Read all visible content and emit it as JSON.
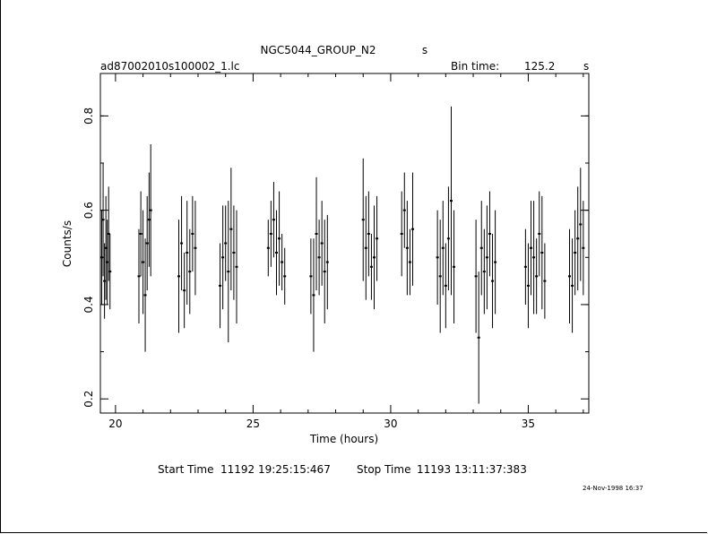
{
  "header": {
    "title": "NGC5044_GROUP_N2",
    "title_suffix": "s",
    "file_name": "ad87002010s100002_1.lc",
    "bin_label": "Bin time:",
    "bin_value": "125.2",
    "bin_unit": "s"
  },
  "footer": {
    "start_label": "Start Time",
    "start_value": "11192 19:25:15:467",
    "stop_label": "Stop Time",
    "stop_value": "11193 13:11:37:383",
    "timestamp": "24-Nov-1998 16:37"
  },
  "chart_data": {
    "type": "scatter",
    "xlabel": "Time (hours)",
    "ylabel": "Counts/s",
    "xlim": [
      19.45,
      37.2
    ],
    "ylim": [
      0.17,
      0.89
    ],
    "x_ticks": [
      20,
      25,
      30,
      35
    ],
    "y_ticks": [
      0.2,
      0.4,
      0.6,
      0.8
    ],
    "x_tick_labels": [
      "20",
      "25",
      "30",
      "35"
    ],
    "y_tick_labels": [
      "0.2",
      "0.4",
      "0.6",
      "0.8"
    ],
    "grid": false,
    "colors": {
      "line": "#000000"
    },
    "segments": [
      {
        "x": [
          19.5,
          19.55,
          19.6,
          19.65,
          19.7,
          19.75,
          19.8
        ],
        "y": [
          0.5,
          0.58,
          0.45,
          0.52,
          0.49,
          0.55,
          0.47
        ],
        "err": [
          0.1,
          0.12,
          0.08,
          0.11,
          0.09,
          0.1,
          0.08
        ]
      },
      {
        "x": [
          20.85,
          20.92,
          21.0,
          21.08,
          21.15,
          21.22,
          21.28
        ],
        "y": [
          0.46,
          0.55,
          0.49,
          0.42,
          0.53,
          0.58,
          0.6
        ],
        "err": [
          0.1,
          0.09,
          0.11,
          0.12,
          0.1,
          0.1,
          0.14
        ]
      },
      {
        "x": [
          22.3,
          22.4,
          22.5,
          22.6,
          22.7,
          22.8,
          22.9
        ],
        "y": [
          0.46,
          0.53,
          0.43,
          0.51,
          0.47,
          0.55,
          0.52
        ],
        "err": [
          0.12,
          0.1,
          0.08,
          0.11,
          0.09,
          0.08,
          0.1
        ]
      },
      {
        "x": [
          23.8,
          23.9,
          24.0,
          24.1,
          24.2,
          24.3,
          24.4
        ],
        "y": [
          0.44,
          0.5,
          0.53,
          0.47,
          0.56,
          0.51,
          0.48
        ],
        "err": [
          0.09,
          0.11,
          0.08,
          0.15,
          0.13,
          0.1,
          0.12
        ]
      },
      {
        "x": [
          25.55,
          25.65,
          25.75,
          25.85,
          25.95,
          26.05,
          26.15
        ],
        "y": [
          0.52,
          0.55,
          0.58,
          0.51,
          0.54,
          0.49,
          0.46
        ],
        "err": [
          0.06,
          0.07,
          0.08,
          0.09,
          0.1,
          0.06,
          0.06
        ]
      },
      {
        "x": [
          27.1,
          27.2,
          27.3,
          27.4,
          27.5,
          27.6,
          27.7
        ],
        "y": [
          0.46,
          0.42,
          0.55,
          0.5,
          0.53,
          0.47,
          0.49
        ],
        "err": [
          0.08,
          0.12,
          0.12,
          0.08,
          0.09,
          0.11,
          0.1
        ]
      },
      {
        "x": [
          29.0,
          29.1,
          29.2,
          29.3,
          29.4,
          29.5
        ],
        "y": [
          0.58,
          0.52,
          0.55,
          0.48,
          0.5,
          0.54
        ],
        "err": [
          0.13,
          0.11,
          0.09,
          0.07,
          0.11,
          0.09
        ]
      },
      {
        "x": [
          30.4,
          30.5,
          30.6,
          30.7,
          30.8
        ],
        "y": [
          0.55,
          0.6,
          0.52,
          0.49,
          0.56
        ],
        "err": [
          0.09,
          0.08,
          0.1,
          0.07,
          0.12
        ]
      },
      {
        "x": [
          31.7,
          31.8,
          31.9,
          32.0,
          32.1,
          32.2,
          32.3
        ],
        "y": [
          0.5,
          0.46,
          0.52,
          0.44,
          0.54,
          0.62,
          0.48
        ],
        "err": [
          0.1,
          0.12,
          0.1,
          0.09,
          0.11,
          0.2,
          0.12
        ]
      },
      {
        "x": [
          33.1,
          33.2,
          33.3,
          33.4,
          33.5,
          33.6,
          33.7,
          33.8
        ],
        "y": [
          0.46,
          0.33,
          0.52,
          0.47,
          0.5,
          0.55,
          0.45,
          0.49
        ],
        "err": [
          0.12,
          0.14,
          0.1,
          0.09,
          0.11,
          0.09,
          0.1,
          0.11
        ]
      },
      {
        "x": [
          34.9,
          35.0,
          35.1,
          35.2,
          35.3,
          35.4,
          35.5,
          35.6
        ],
        "y": [
          0.48,
          0.44,
          0.52,
          0.5,
          0.46,
          0.55,
          0.51,
          0.45
        ],
        "err": [
          0.08,
          0.09,
          0.1,
          0.12,
          0.08,
          0.09,
          0.12,
          0.08
        ]
      },
      {
        "x": [
          36.5,
          36.6,
          36.7,
          36.8,
          36.9,
          37.0
        ],
        "y": [
          0.46,
          0.44,
          0.51,
          0.54,
          0.57,
          0.52
        ],
        "err": [
          0.1,
          0.1,
          0.09,
          0.11,
          0.12,
          0.1
        ]
      }
    ]
  }
}
